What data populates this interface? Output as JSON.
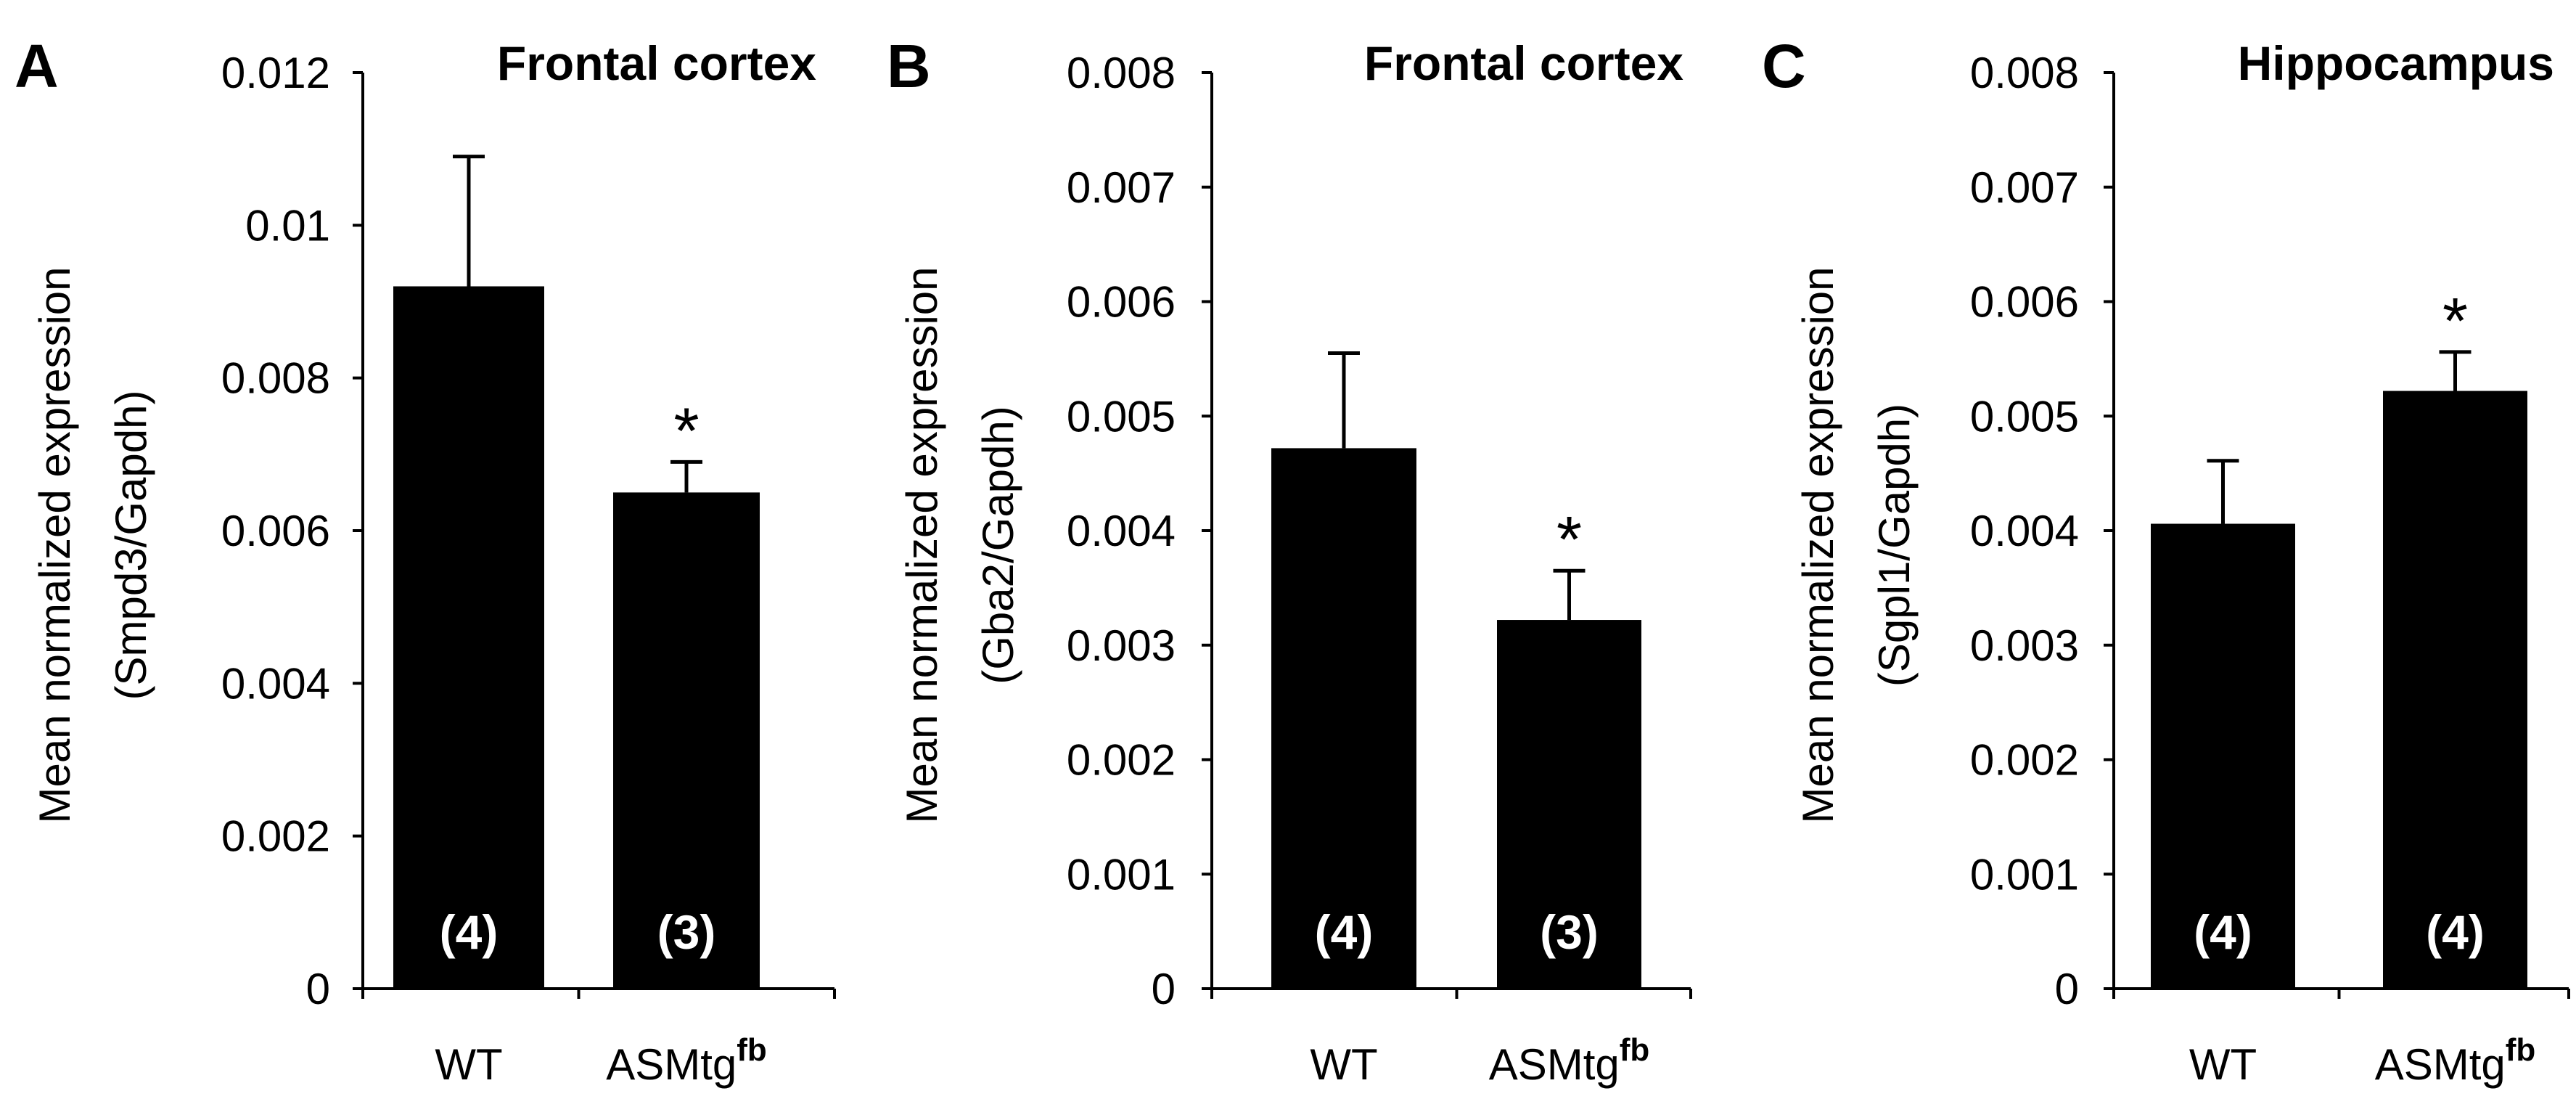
{
  "chart_data": [
    {
      "type": "bar",
      "panel": "A",
      "title": "Frontal cortex",
      "ylabel_line1": "Mean  normalized expression",
      "ylabel_line2": "(Smpd3/Gapdh)",
      "xlabel": "",
      "categories": [
        {
          "base": "WT",
          "sup": ""
        },
        {
          "base": "ASMtg",
          "sup": "fb"
        }
      ],
      "values": [
        0.0092,
        0.0065
      ],
      "errors": [
        0.0017,
        0.0004
      ],
      "n_labels": [
        "(4)",
        "(3)"
      ],
      "significance": [
        "",
        "*"
      ],
      "ylim": [
        0,
        0.012
      ],
      "yticks": [
        0,
        0.002,
        0.004,
        0.006,
        0.008,
        0.01,
        0.012
      ],
      "ytick_labels": [
        "0",
        "0.002",
        "0.004",
        "0.006",
        "0.008",
        "0.01",
        "0.012"
      ],
      "bar_color": "#000000",
      "n_label_color": "#ffffff"
    },
    {
      "type": "bar",
      "panel": "B",
      "title": "Frontal cortex",
      "ylabel_line1": "Mean normalized expression",
      "ylabel_line2": "(Gba2/Gapdh)",
      "xlabel": "",
      "categories": [
        {
          "base": "WT",
          "sup": ""
        },
        {
          "base": "ASMtg",
          "sup": "fb"
        }
      ],
      "values": [
        0.00472,
        0.00322
      ],
      "errors": [
        0.00083,
        0.00043
      ],
      "n_labels": [
        "(4)",
        "(3)"
      ],
      "significance": [
        "",
        "*"
      ],
      "ylim": [
        0,
        0.008
      ],
      "yticks": [
        0,
        0.001,
        0.002,
        0.003,
        0.004,
        0.005,
        0.006,
        0.007,
        0.008
      ],
      "ytick_labels": [
        "0",
        "0.001",
        "0.002",
        "0.003",
        "0.004",
        "0.005",
        "0.006",
        "0.007",
        "0.008"
      ],
      "bar_color": "#000000",
      "n_label_color": "#ffffff"
    },
    {
      "type": "bar",
      "panel": "C",
      "title": "Hippocampus",
      "ylabel_line1": "Mean normalized expression",
      "ylabel_line2": "(Sgpl1/Gapdh)",
      "xlabel": "",
      "categories": [
        {
          "base": "WT",
          "sup": ""
        },
        {
          "base": "ASMtg",
          "sup": "fb"
        }
      ],
      "values": [
        0.00406,
        0.00522
      ],
      "errors": [
        0.00055,
        0.00034
      ],
      "n_labels": [
        "(4)",
        "(4)"
      ],
      "significance": [
        "",
        "*"
      ],
      "ylim": [
        0,
        0.008
      ],
      "yticks": [
        0,
        0.001,
        0.002,
        0.003,
        0.004,
        0.005,
        0.006,
        0.007,
        0.008
      ],
      "ytick_labels": [
        "0",
        "0.001",
        "0.002",
        "0.003",
        "0.004",
        "0.005",
        "0.006",
        "0.007",
        "0.008"
      ],
      "bar_color": "#000000",
      "n_label_color": "#ffffff"
    }
  ]
}
